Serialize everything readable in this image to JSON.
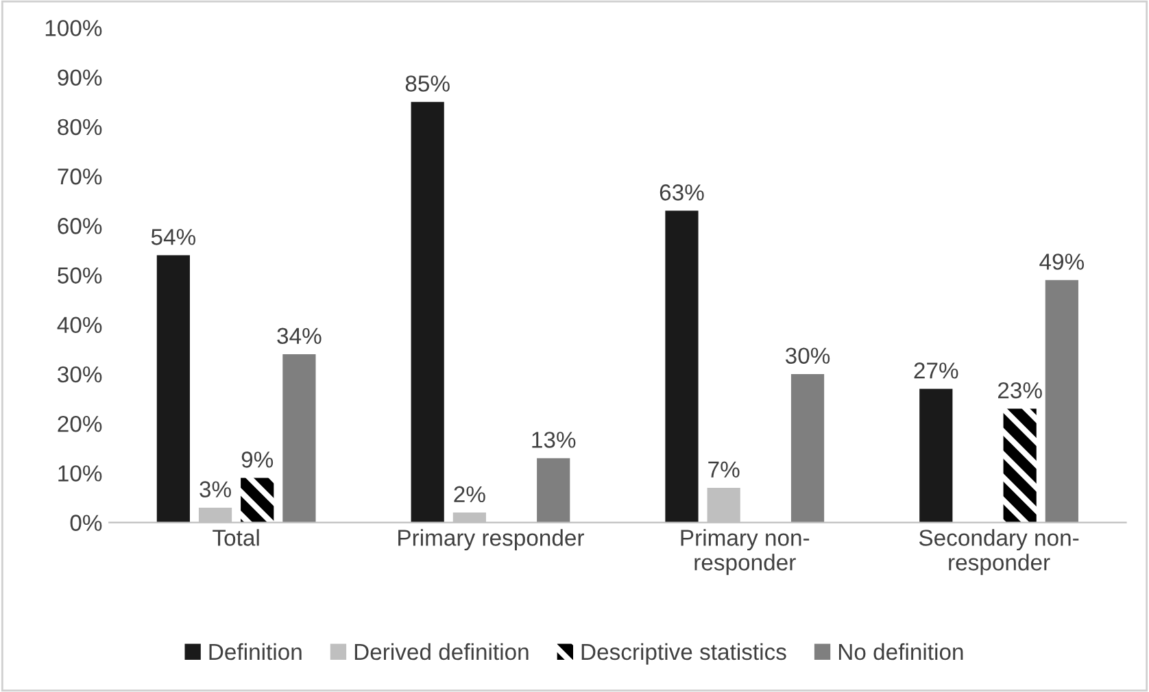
{
  "chart_data": {
    "type": "bar",
    "categories": [
      "Total",
      "Primary responder",
      "Primary non-\nresponder",
      "Secondary non-\nresponder"
    ],
    "series": [
      {
        "name": "Definition",
        "color": "#1a1a1a",
        "values": [
          54,
          85,
          63,
          27
        ],
        "value_labels": [
          "54%",
          "85%",
          "63%",
          "27%"
        ]
      },
      {
        "name": "Derived definition",
        "color": "#bfbfbf",
        "values": [
          3,
          2,
          7,
          null
        ],
        "value_labels": [
          "3%",
          "2%",
          "7%",
          null
        ]
      },
      {
        "name": "Descriptive statistics",
        "color": "#000000",
        "values": [
          9,
          null,
          null,
          23
        ],
        "value_labels": [
          "9%",
          null,
          null,
          "23%"
        ]
      },
      {
        "name": "No definition",
        "color": "#7f7f7f",
        "values": [
          34,
          13,
          30,
          49
        ],
        "value_labels": [
          "34%",
          "13%",
          "30%",
          "49%"
        ]
      }
    ],
    "ylim": [
      0,
      100
    ],
    "yticks": [
      {
        "value": 0,
        "label": "0%"
      },
      {
        "value": 10,
        "label": "10%"
      },
      {
        "value": 20,
        "label": "20%"
      },
      {
        "value": 30,
        "label": "30%"
      },
      {
        "value": 40,
        "label": "40%"
      },
      {
        "value": 50,
        "label": "50%"
      },
      {
        "value": 60,
        "label": "60%"
      },
      {
        "value": 70,
        "label": "70%"
      },
      {
        "value": 80,
        "label": "80%"
      },
      {
        "value": 90,
        "label": "90%"
      },
      {
        "value": 100,
        "label": "100%"
      }
    ],
    "grid": false,
    "legend": "bottom"
  }
}
